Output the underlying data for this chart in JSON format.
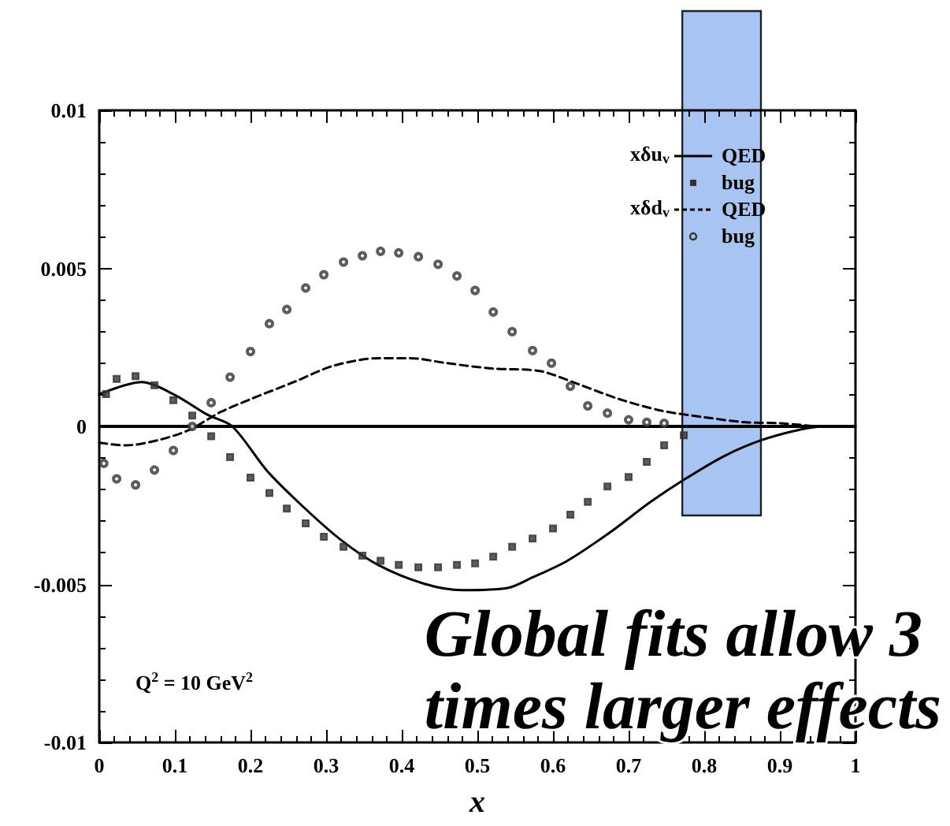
{
  "chart_data": {
    "type": "line",
    "xlabel": "x",
    "xlim": [
      0,
      1
    ],
    "xticks": [
      0,
      0.1,
      0.2,
      0.3,
      0.4,
      0.5,
      0.6,
      0.7,
      0.8,
      0.9,
      1
    ],
    "ylim": [
      -0.01,
      0.01
    ],
    "yticks": [
      -0.01,
      -0.005,
      0,
      0.005,
      0.01
    ],
    "grid": false,
    "legend": "top right",
    "series": [
      {
        "name": "QED",
        "color": "#000000",
        "line_style": "solid",
        "marker": "none",
        "x": [
          0,
          0.056,
          0.098,
          0.143,
          0.176,
          0.222,
          0.27,
          0.32,
          0.37,
          0.43,
          0.48,
          0.54,
          0.571,
          0.619,
          0.675,
          0.729,
          0.775,
          0.827,
          0.875,
          0.925,
          0.96,
          1
        ],
        "values": [
          0.00102,
          0.0014,
          0.00102,
          0.00037,
          0,
          -0.00141,
          -0.00255,
          -0.0036,
          -0.0044,
          -0.00498,
          -0.00518,
          -0.00511,
          -0.0048,
          -0.00425,
          -0.00336,
          -0.00239,
          -0.00166,
          -0.00093,
          -0.00044,
          -0.00011,
          0,
          0
        ]
      },
      {
        "name": "bug",
        "type": "scatter",
        "color": "#333333",
        "marker": "square",
        "x": [
          0.009,
          0.023,
          0.048,
          0.073,
          0.098,
          0.123,
          0.148,
          0.173,
          0.2,
          0.225,
          0.248,
          0.273,
          0.297,
          0.323,
          0.348,
          0.372,
          0.396,
          0.422,
          0.448,
          0.473,
          0.497,
          0.521,
          0.546,
          0.573,
          0.6,
          0.623,
          0.646,
          0.672,
          0.7,
          0.724,
          0.747,
          0.773
        ],
        "values": [
          0.00102,
          0.0015,
          0.00159,
          0.0013,
          0.00083,
          0.00034,
          -0.00031,
          -0.00097,
          -0.00162,
          -0.00211,
          -0.0026,
          -0.00307,
          -0.00349,
          -0.00381,
          -0.00409,
          -0.00425,
          -0.00438,
          -0.00446,
          -0.00446,
          -0.00438,
          -0.00433,
          -0.00412,
          -0.00381,
          -0.00355,
          -0.00323,
          -0.00279,
          -0.00239,
          -0.0019,
          -0.0016,
          -0.00112,
          -0.0006,
          -0.00028
        ]
      },
      {
        "name": "QED",
        "color": "#000000",
        "line_style": "dashed",
        "marker": "none",
        "x": [
          0,
          0.035,
          0.077,
          0.119,
          0.16,
          0.2,
          0.26,
          0.31,
          0.37,
          0.41,
          0.46,
          0.52,
          0.583,
          0.632,
          0.688,
          0.743,
          0.8,
          0.855,
          0.9,
          0.96,
          1
        ],
        "values": [
          -0.00052,
          -0.0006,
          -0.00044,
          -0.00011,
          0.00045,
          0.00086,
          0.00143,
          0.00192,
          0.00216,
          0.00216,
          0.002,
          0.00183,
          0.00175,
          0.00135,
          0.00086,
          0.0005,
          0.00029,
          0.00013,
          0.0001,
          0,
          0
        ]
      },
      {
        "name": "bug",
        "type": "scatter",
        "color": "#333333",
        "marker": "circle",
        "x": [
          0.006,
          0.023,
          0.048,
          0.073,
          0.098,
          0.123,
          0.148,
          0.173,
          0.2,
          0.225,
          0.248,
          0.273,
          0.297,
          0.323,
          0.348,
          0.372,
          0.396,
          0.422,
          0.448,
          0.473,
          0.497,
          0.521,
          0.546,
          0.573,
          0.598,
          0.623,
          0.646,
          0.672,
          0.7,
          0.724,
          0.747
        ],
        "values": [
          -0.00117,
          -0.00166,
          -0.00185,
          -0.00138,
          -0.00076,
          0,
          0.00075,
          0.00156,
          0.00237,
          0.00325,
          0.0037,
          0.00438,
          0.0048,
          0.0052,
          0.0054,
          0.00554,
          0.00549,
          0.00537,
          0.00513,
          0.00476,
          0.0043,
          0.00362,
          0.003,
          0.0024,
          0.002,
          0.00127,
          0.00065,
          0.00042,
          0.00021,
          0.00013,
          0.0001
        ]
      }
    ],
    "ref_lines": [
      {
        "axis": "y",
        "value": 0,
        "color": "#000000",
        "line_style": "solid"
      }
    ],
    "bands": [
      {
        "axis": "x",
        "from": 0.771,
        "to": 0.875,
        "color": "#99bbee"
      }
    ],
    "annotations": [
      "xδu$_{v}$",
      "xδd$_{v}$",
      "Q$^{2}$ = 10 GeV$^{2}$",
      "Global fits allow 3\ntimes larger effects"
    ]
  }
}
